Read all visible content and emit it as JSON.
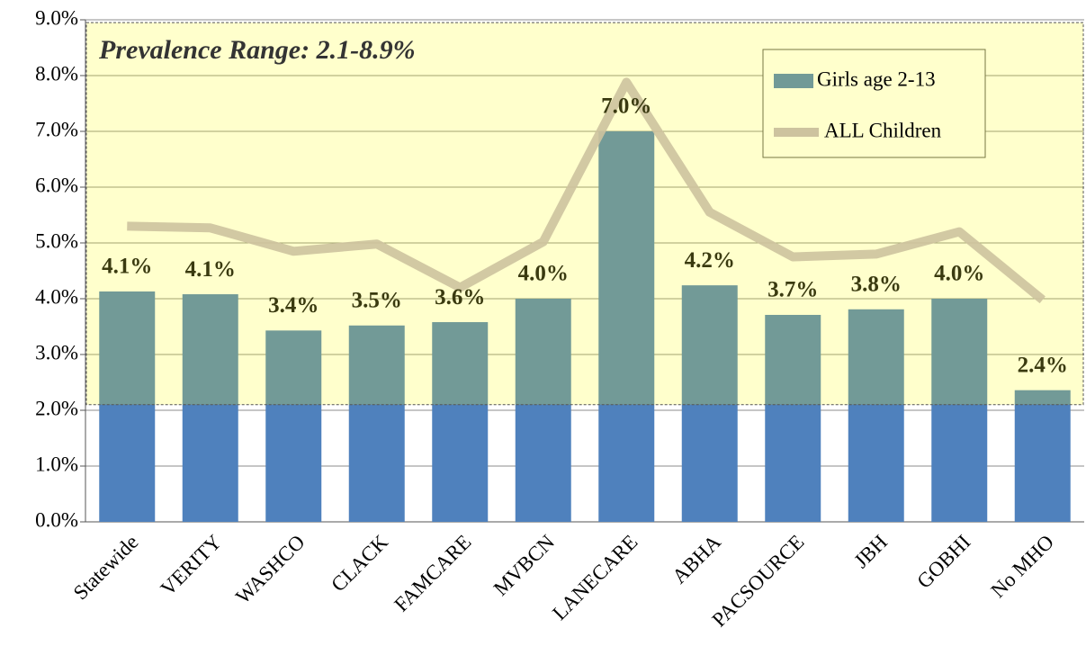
{
  "chart_data": {
    "type": "bar",
    "annotation": "Prevalence Range: 2.1-8.9%",
    "highlight_range": [
      2.1,
      8.95
    ],
    "categories": [
      "Statewide",
      "VERITY",
      "WASHCO",
      "CLACK",
      "FAMCARE",
      "MVBCN",
      "LANECARE",
      "ABHA",
      "PACSOURCE",
      "JBH",
      "GOBHI",
      "No MHO"
    ],
    "series": [
      {
        "name": "Girls age 2-13",
        "type": "bar",
        "color": "#4f81bd",
        "values": [
          4.13,
          4.08,
          3.43,
          3.52,
          3.58,
          4.0,
          7.0,
          4.24,
          3.71,
          3.81,
          4.0,
          2.36
        ],
        "value_labels": [
          "4.1%",
          "4.1%",
          "3.4%",
          "3.5%",
          "3.6%",
          "4.0%",
          "7.0%",
          "4.2%",
          "3.7%",
          "3.8%",
          "4.0%",
          "2.4%"
        ]
      },
      {
        "name": "ALL Children",
        "type": "line",
        "color": "#cdc39f",
        "values": [
          5.3,
          5.27,
          4.85,
          4.98,
          4.2,
          5.02,
          7.88,
          5.55,
          4.75,
          4.8,
          5.2,
          3.98
        ]
      }
    ],
    "ylim": [
      0,
      9
    ],
    "yticks": [
      {
        "value": 0,
        "label": "0.0%"
      },
      {
        "value": 1,
        "label": "1.0%"
      },
      {
        "value": 2,
        "label": "2.0%"
      },
      {
        "value": 3,
        "label": "3.0%"
      },
      {
        "value": 4,
        "label": "4.0%"
      },
      {
        "value": 5,
        "label": "5.0%"
      },
      {
        "value": 6,
        "label": "6.0%"
      },
      {
        "value": 7,
        "label": "7.0%"
      },
      {
        "value": 8,
        "label": "8.0%"
      },
      {
        "value": 9,
        "label": "9.0%"
      }
    ],
    "grid": true,
    "legend": "upper right"
  }
}
